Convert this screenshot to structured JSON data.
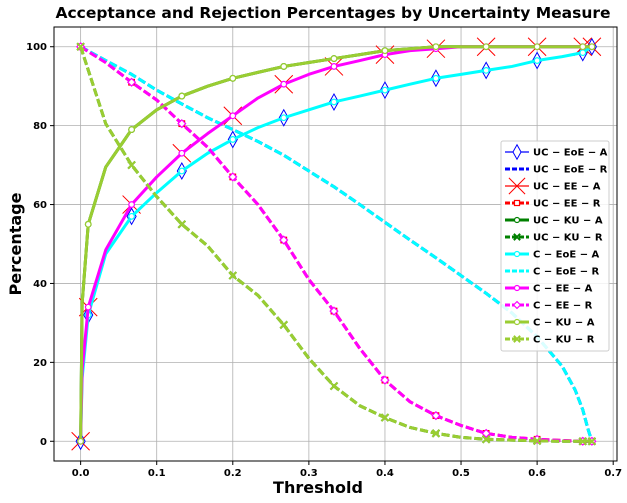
{
  "chart_data": {
    "type": "line",
    "title": "Acceptance and Rejection Percentages by Uncertainty Measure",
    "xlabel": "Threshold",
    "ylabel": "Percentage",
    "xlim": [
      -0.035,
      0.705
    ],
    "ylim": [
      -5,
      105
    ],
    "xticks": [
      0.0,
      0.1,
      0.2,
      0.3,
      0.4,
      0.5,
      0.6,
      0.7
    ],
    "xtick_labels": [
      "0.0",
      "0.1",
      "0.2",
      "0.3",
      "0.4",
      "0.5",
      "0.6",
      "0.7"
    ],
    "yticks": [
      0,
      20,
      40,
      60,
      80,
      100
    ],
    "ytick_labels": [
      "0",
      "20",
      "40",
      "60",
      "80",
      "100"
    ],
    "grid": true,
    "legend_position": "right",
    "series": [
      {
        "name": "UC − EoE − A",
        "color": "#0000ff",
        "dash": "solid",
        "width": 1.2,
        "marker": "thin_diamond",
        "x": [
          0,
          0.002,
          0.01,
          0.033,
          0.067,
          0.1,
          0.133,
          0.167,
          0.2,
          0.233,
          0.267,
          0.3,
          0.333,
          0.367,
          0.4,
          0.433,
          0.467,
          0.5,
          0.533,
          0.567,
          0.6,
          0.633,
          0.66,
          0.672
        ],
        "y": [
          0,
          16,
          32,
          47.5,
          57,
          63,
          68.5,
          73,
          76.5,
          79.5,
          82,
          84,
          86,
          87.5,
          89,
          90.5,
          92,
          93,
          94,
          95,
          96.5,
          97.5,
          98.5,
          100
        ]
      },
      {
        "name": "UC − EoE − R",
        "color": "#0000ff",
        "dash": "dashed",
        "width": 3,
        "marker": "none",
        "x": [
          0,
          0.033,
          0.067,
          0.1,
          0.133,
          0.167,
          0.2,
          0.233,
          0.267,
          0.3,
          0.333,
          0.367,
          0.4,
          0.433,
          0.467,
          0.5,
          0.533,
          0.567,
          0.6,
          0.633,
          0.65,
          0.66,
          0.667,
          0.672
        ],
        "y": [
          100,
          96.5,
          93,
          89,
          85.5,
          82,
          79,
          76,
          72.5,
          68.5,
          64.5,
          60,
          55.5,
          51,
          46.5,
          42,
          37.5,
          32.5,
          26.5,
          19,
          13,
          8,
          3,
          0
        ]
      },
      {
        "name": "UC − EE − A",
        "color": "#ff0000",
        "dash": "solid",
        "width": 1.2,
        "marker": "x",
        "x": [
          0,
          0.002,
          0.01,
          0.033,
          0.067,
          0.1,
          0.133,
          0.167,
          0.2,
          0.233,
          0.267,
          0.3,
          0.333,
          0.367,
          0.4,
          0.433,
          0.467,
          0.5,
          0.533,
          0.567,
          0.6,
          0.633,
          0.66,
          0.672
        ],
        "y": [
          0,
          18,
          34,
          48.5,
          60,
          67,
          73,
          78,
          82.5,
          87,
          90.5,
          93,
          95,
          96.5,
          98,
          99,
          99.5,
          100,
          100,
          100,
          100,
          100,
          100,
          100
        ]
      },
      {
        "name": "UC − EE − R",
        "color": "#ff0000",
        "dash": "dashed",
        "width": 3,
        "marker": "square",
        "x": [
          0,
          0.033,
          0.067,
          0.1,
          0.133,
          0.167,
          0.2,
          0.233,
          0.267,
          0.3,
          0.333,
          0.367,
          0.4,
          0.433,
          0.467,
          0.5,
          0.533,
          0.567,
          0.6,
          0.633,
          0.66,
          0.672
        ],
        "y": [
          100,
          96,
          91,
          86.5,
          80.5,
          74.5,
          67,
          60,
          51,
          41,
          33,
          23.5,
          15.5,
          10,
          6.5,
          4,
          2,
          1,
          0.5,
          0.2,
          0,
          0
        ]
      },
      {
        "name": "UC − KU − A",
        "color": "#008000",
        "dash": "solid",
        "width": 3,
        "marker": "circle",
        "x": [
          0,
          0.002,
          0.01,
          0.033,
          0.067,
          0.1,
          0.133,
          0.167,
          0.2,
          0.233,
          0.267,
          0.3,
          0.333,
          0.367,
          0.4,
          0.433,
          0.467,
          0.5,
          0.533,
          0.567,
          0.6,
          0.633,
          0.66,
          0.672
        ],
        "y": [
          0,
          35,
          55,
          69.5,
          79,
          84,
          87.5,
          90,
          92,
          93.5,
          95,
          96,
          97,
          98,
          99,
          99.5,
          100,
          100,
          100,
          100,
          100,
          100,
          100,
          100
        ]
      },
      {
        "name": "UC − KU − R",
        "color": "#008000",
        "dash": "dashed",
        "width": 3,
        "marker": "x",
        "x": [
          0,
          0.033,
          0.067,
          0.1,
          0.133,
          0.167,
          0.2,
          0.233,
          0.267,
          0.3,
          0.333,
          0.367,
          0.4,
          0.433,
          0.467,
          0.5,
          0.533,
          0.567,
          0.6,
          0.633,
          0.66,
          0.672
        ],
        "y": [
          100,
          80.5,
          70,
          62,
          55,
          49.5,
          42,
          37,
          29.5,
          21,
          14,
          9,
          6,
          3.5,
          2,
          1,
          0.5,
          0.3,
          0.1,
          0,
          0,
          0
        ]
      },
      {
        "name": "C − EoE − A",
        "color": "#00ffff",
        "dash": "solid",
        "width": 3,
        "marker": "circle",
        "x": [
          0,
          0.002,
          0.01,
          0.033,
          0.067,
          0.1,
          0.133,
          0.167,
          0.2,
          0.233,
          0.267,
          0.3,
          0.333,
          0.367,
          0.4,
          0.433,
          0.467,
          0.5,
          0.533,
          0.567,
          0.6,
          0.633,
          0.66,
          0.672
        ],
        "y": [
          0,
          16,
          32,
          47.5,
          57,
          63,
          68.5,
          73,
          76.5,
          79.5,
          82,
          84,
          86,
          87.5,
          89,
          90.5,
          92,
          93,
          94,
          95,
          96.5,
          97.5,
          98.5,
          100
        ]
      },
      {
        "name": "C − EoE − R",
        "color": "#00ffff",
        "dash": "dashed",
        "width": 3,
        "marker": "none",
        "x": [
          0,
          0.033,
          0.067,
          0.1,
          0.133,
          0.167,
          0.2,
          0.233,
          0.267,
          0.3,
          0.333,
          0.367,
          0.4,
          0.433,
          0.467,
          0.5,
          0.533,
          0.567,
          0.6,
          0.633,
          0.65,
          0.66,
          0.667,
          0.672
        ],
        "y": [
          100,
          96.5,
          93,
          89,
          85.5,
          82,
          79,
          76,
          72.5,
          68.5,
          64.5,
          60,
          55.5,
          51,
          46.5,
          42,
          37.5,
          32.5,
          26.5,
          19,
          13,
          8,
          3,
          0
        ]
      },
      {
        "name": "C − EE − A",
        "color": "#ff00ff",
        "dash": "solid",
        "width": 3,
        "marker": "circle",
        "x": [
          0,
          0.002,
          0.01,
          0.033,
          0.067,
          0.1,
          0.133,
          0.167,
          0.2,
          0.233,
          0.267,
          0.3,
          0.333,
          0.367,
          0.4,
          0.433,
          0.467,
          0.5,
          0.533,
          0.567,
          0.6,
          0.633,
          0.66,
          0.672
        ],
        "y": [
          0,
          18,
          34,
          48.5,
          60,
          67,
          73,
          78,
          82.5,
          87,
          90.5,
          93,
          95,
          96.5,
          98,
          99,
          99.5,
          100,
          100,
          100,
          100,
          100,
          100,
          100
        ]
      },
      {
        "name": "C − EE − R",
        "color": "#ff00ff",
        "dash": "dashed",
        "width": 3,
        "marker": "diamond",
        "x": [
          0,
          0.033,
          0.067,
          0.1,
          0.133,
          0.167,
          0.2,
          0.233,
          0.267,
          0.3,
          0.333,
          0.367,
          0.4,
          0.433,
          0.467,
          0.5,
          0.533,
          0.567,
          0.6,
          0.633,
          0.66,
          0.672
        ],
        "y": [
          100,
          96,
          91,
          86.5,
          80.5,
          74.5,
          67,
          60,
          51,
          41,
          33,
          23.5,
          15.5,
          10,
          6.5,
          4,
          2,
          1,
          0.5,
          0.2,
          0,
          0
        ]
      },
      {
        "name": "C − KU − A",
        "color": "#9acd32",
        "dash": "solid",
        "width": 3,
        "marker": "circle",
        "x": [
          0,
          0.002,
          0.01,
          0.033,
          0.067,
          0.1,
          0.133,
          0.167,
          0.2,
          0.233,
          0.267,
          0.3,
          0.333,
          0.367,
          0.4,
          0.433,
          0.467,
          0.5,
          0.533,
          0.567,
          0.6,
          0.633,
          0.66,
          0.672
        ],
        "y": [
          0,
          35,
          55,
          69.5,
          79,
          84,
          87.5,
          90,
          92,
          93.5,
          95,
          96,
          97,
          98,
          99,
          99.5,
          100,
          100,
          100,
          100,
          100,
          100,
          100,
          100
        ]
      },
      {
        "name": "C − KU − R",
        "color": "#9acd32",
        "dash": "dashed",
        "width": 3,
        "marker": "x",
        "x": [
          0,
          0.033,
          0.067,
          0.1,
          0.133,
          0.167,
          0.2,
          0.233,
          0.267,
          0.3,
          0.333,
          0.367,
          0.4,
          0.433,
          0.467,
          0.5,
          0.533,
          0.567,
          0.6,
          0.633,
          0.66,
          0.672
        ],
        "y": [
          100,
          80.5,
          70,
          62,
          55,
          49.5,
          42,
          37,
          29.5,
          21,
          14,
          9,
          6,
          3.5,
          2,
          1,
          0.5,
          0.3,
          0.1,
          0,
          0,
          0
        ]
      }
    ]
  }
}
